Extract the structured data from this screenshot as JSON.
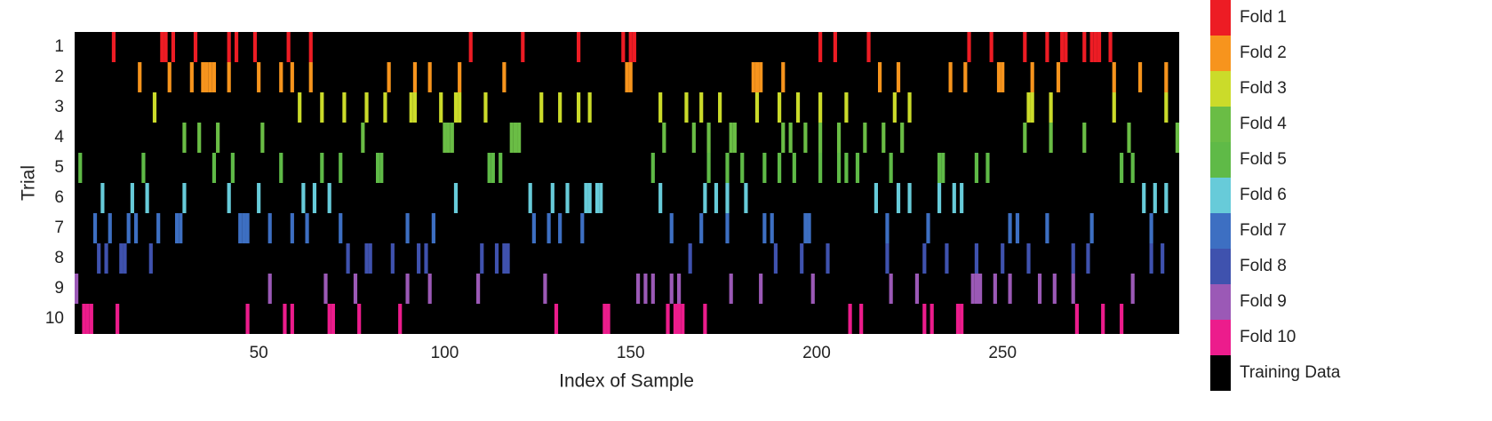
{
  "chart_data": {
    "type": "heatmap",
    "xlabel": "Index of Sample",
    "ylabel": "Trial",
    "xlim": [
      0.5,
      297.5
    ],
    "xticks": [
      50,
      100,
      150,
      200,
      250
    ],
    "ylim": [
      0.5,
      10.5
    ],
    "yticks": [
      1,
      2,
      3,
      4,
      5,
      6,
      7,
      8,
      9,
      10
    ],
    "y_inverted": true,
    "background": {
      "name": "Training Data",
      "color": "#000000"
    },
    "series": [
      {
        "name": "Fold 1",
        "color": "#ed1c24",
        "values": [
          11,
          24,
          25,
          27,
          33,
          42,
          44,
          49,
          58,
          64,
          107,
          121,
          136,
          148,
          150,
          151,
          201,
          205,
          214,
          241,
          247,
          256,
          262,
          266,
          267,
          272,
          274,
          275,
          276,
          279
        ]
      },
      {
        "name": "Fold 2",
        "color": "#f7941d",
        "values": [
          18,
          26,
          32,
          35,
          36,
          37,
          38,
          42,
          50,
          56,
          59,
          64,
          85,
          92,
          96,
          104,
          116,
          149,
          150,
          183,
          184,
          185,
          191,
          217,
          222,
          236,
          240,
          249,
          250,
          258,
          265,
          280,
          287,
          294
        ]
      },
      {
        "name": "Fold 3",
        "color": "#cbdb2a",
        "values": [
          22,
          61,
          67,
          73,
          79,
          84,
          91,
          92,
          99,
          103,
          104,
          111,
          126,
          131,
          136,
          139,
          158,
          165,
          169,
          174,
          184,
          190,
          195,
          201,
          208,
          221,
          225,
          257,
          258,
          263,
          280,
          294
        ]
      },
      {
        "name": "Fold 4",
        "color": "#6abd45",
        "values": [
          30,
          34,
          39,
          51,
          78,
          100,
          101,
          102,
          118,
          119,
          120,
          159,
          167,
          171,
          177,
          178,
          191,
          193,
          197,
          201,
          206,
          213,
          218,
          223,
          256,
          263,
          272,
          284,
          297
        ]
      },
      {
        "name": "Fold 5",
        "color": "#5fba47",
        "values": [
          2,
          19,
          38,
          43,
          56,
          67,
          72,
          82,
          83,
          112,
          113,
          115,
          156,
          171,
          176,
          180,
          186,
          190,
          194,
          201,
          206,
          208,
          211,
          220,
          233,
          234,
          243,
          246,
          282,
          285
        ]
      },
      {
        "name": "Fold 6",
        "color": "#67cbd9",
        "values": [
          8,
          16,
          20,
          30,
          42,
          50,
          62,
          65,
          69,
          103,
          123,
          129,
          133,
          138,
          139,
          141,
          142,
          158,
          170,
          173,
          176,
          181,
          216,
          222,
          225,
          233,
          237,
          239,
          288,
          291,
          294
        ]
      },
      {
        "name": "Fold 7",
        "color": "#3d6fc2",
        "values": [
          6,
          10,
          15,
          17,
          23,
          28,
          29,
          45,
          46,
          47,
          53,
          59,
          63,
          72,
          90,
          97,
          124,
          128,
          131,
          137,
          161,
          169,
          176,
          186,
          188,
          197,
          198,
          219,
          230,
          252,
          254,
          262,
          274,
          290
        ]
      },
      {
        "name": "Fold 8",
        "color": "#3f52ae",
        "values": [
          7,
          9,
          13,
          14,
          21,
          74,
          79,
          80,
          86,
          93,
          95,
          110,
          114,
          116,
          117,
          166,
          189,
          196,
          203,
          219,
          229,
          235,
          243,
          250,
          257,
          269,
          273,
          290,
          293
        ]
      },
      {
        "name": "Fold 9",
        "color": "#9b59b6",
        "values": [
          1,
          53,
          68,
          76,
          90,
          96,
          109,
          127,
          152,
          154,
          156,
          161,
          163,
          177,
          185,
          199,
          220,
          227,
          242,
          243,
          244,
          248,
          252,
          260,
          264,
          269,
          285
        ]
      },
      {
        "name": "Fold 10",
        "color": "#ec1c8c",
        "values": [
          3,
          4,
          5,
          12,
          47,
          57,
          59,
          69,
          70,
          77,
          88,
          130,
          143,
          144,
          160,
          162,
          163,
          164,
          170,
          209,
          212,
          229,
          231,
          238,
          239,
          270,
          277,
          282
        ]
      }
    ]
  }
}
